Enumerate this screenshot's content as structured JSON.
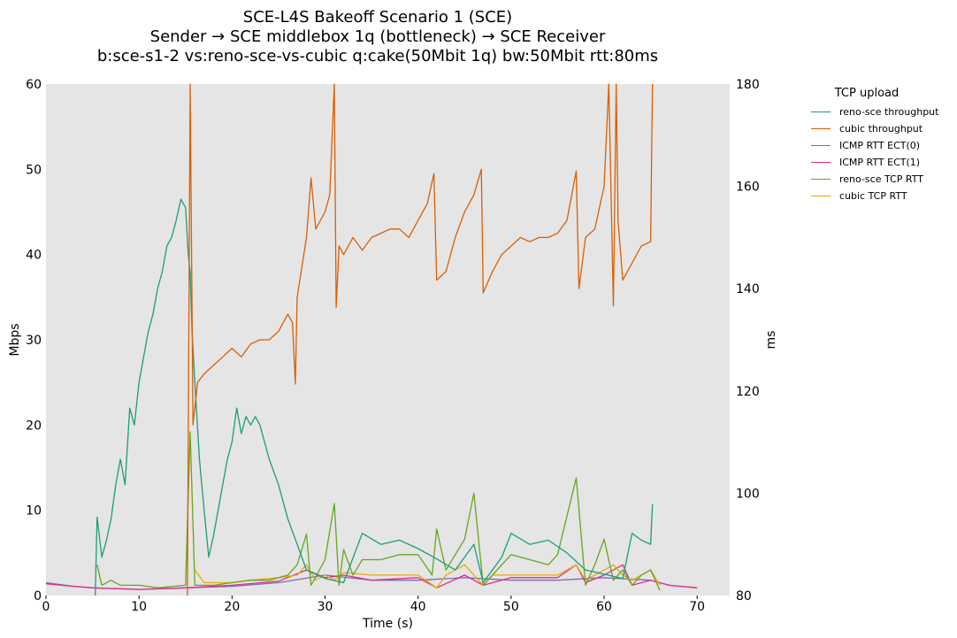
{
  "titles": {
    "line1": "SCE-L4S Bakeoff Scenario 1 (SCE)",
    "line2": "Sender → SCE middlebox 1q (bottleneck) → SCE Receiver",
    "line3": "b:sce-s1-2 vs:reno-sce-vs-cubic q:cake(50Mbit 1q) bw:50Mbit rtt:80ms"
  },
  "chart_data": {
    "type": "line",
    "xlabel": "Time (s)",
    "ylabel_left": "Mbps",
    "ylabel_right": "ms",
    "xlim": [
      0,
      73.5
    ],
    "ylim_left": [
      0,
      60
    ],
    "ylim_right": [
      80,
      180
    ],
    "x_ticks": [
      0,
      10,
      20,
      30,
      40,
      50,
      60,
      70
    ],
    "y_ticks_left": [
      0,
      10,
      20,
      30,
      40,
      50,
      60
    ],
    "y_ticks_right": [
      80,
      100,
      120,
      140,
      160,
      180
    ],
    "grid": false,
    "background": "#e5e5e5",
    "legend": {
      "title": "TCP upload",
      "placement": "outside-right"
    },
    "series": [
      {
        "name": "reno-sce throughput",
        "axis": "left",
        "color": "#1b9e77",
        "points": [
          [
            5.3,
            0
          ],
          [
            5.5,
            9.2
          ],
          [
            6,
            4.5
          ],
          [
            6.5,
            6.5
          ],
          [
            7,
            9
          ],
          [
            7.5,
            13
          ],
          [
            8,
            16
          ],
          [
            8.5,
            13
          ],
          [
            9,
            22
          ],
          [
            9.5,
            20
          ],
          [
            10,
            25
          ],
          [
            10.5,
            28
          ],
          [
            11,
            31
          ],
          [
            11.5,
            33
          ],
          [
            12,
            36
          ],
          [
            12.5,
            38
          ],
          [
            13,
            41
          ],
          [
            13.5,
            42
          ],
          [
            14,
            44
          ],
          [
            14.5,
            46.5
          ],
          [
            15,
            45.5
          ],
          [
            15.3,
            40
          ],
          [
            15.5,
            38
          ],
          [
            15.7,
            31
          ],
          [
            16,
            25
          ],
          [
            16.5,
            16
          ],
          [
            17,
            10
          ],
          [
            17.5,
            4.5
          ],
          [
            18,
            7
          ],
          [
            18.5,
            10
          ],
          [
            19,
            13
          ],
          [
            19.5,
            16
          ],
          [
            20,
            18
          ],
          [
            20.5,
            22
          ],
          [
            21,
            19
          ],
          [
            21.5,
            21
          ],
          [
            22,
            20
          ],
          [
            22.5,
            21
          ],
          [
            23,
            20
          ],
          [
            23.5,
            18
          ],
          [
            24,
            16
          ],
          [
            25,
            13
          ],
          [
            26,
            9
          ],
          [
            27,
            6
          ],
          [
            28,
            3
          ],
          [
            30,
            2
          ],
          [
            32,
            1.5
          ],
          [
            34,
            7.3
          ],
          [
            36,
            6
          ],
          [
            38,
            6.5
          ],
          [
            40,
            5.5
          ],
          [
            42,
            4.3
          ],
          [
            44,
            3
          ],
          [
            46,
            6
          ],
          [
            47,
            1.5
          ],
          [
            49,
            4.5
          ],
          [
            50,
            7.3
          ],
          [
            52,
            6
          ],
          [
            54,
            6.5
          ],
          [
            56,
            5
          ],
          [
            58,
            3
          ],
          [
            60,
            2.5
          ],
          [
            62,
            2
          ],
          [
            63,
            7.3
          ],
          [
            64,
            6.5
          ],
          [
            65,
            6
          ],
          [
            65.2,
            10.7
          ]
        ]
      },
      {
        "name": "cubic throughput",
        "axis": "left",
        "color": "#d95f02",
        "points": [
          [
            15.2,
            0
          ],
          [
            15.5,
            62
          ],
          [
            15.8,
            20
          ],
          [
            16.3,
            25
          ],
          [
            17,
            26
          ],
          [
            18,
            27
          ],
          [
            19,
            28
          ],
          [
            20,
            29
          ],
          [
            21,
            28
          ],
          [
            22,
            29.5
          ],
          [
            23,
            30
          ],
          [
            24,
            30
          ],
          [
            25,
            31
          ],
          [
            26,
            33
          ],
          [
            26.5,
            32
          ],
          [
            26.8,
            24.8
          ],
          [
            27,
            35
          ],
          [
            28,
            42
          ],
          [
            28.5,
            49
          ],
          [
            29,
            43
          ],
          [
            30,
            45
          ],
          [
            30.5,
            47
          ],
          [
            31,
            60
          ],
          [
            31.2,
            33.8
          ],
          [
            31.5,
            41
          ],
          [
            32,
            40
          ],
          [
            33,
            42
          ],
          [
            34,
            40.5
          ],
          [
            35,
            42
          ],
          [
            36,
            42.5
          ],
          [
            37,
            43
          ],
          [
            38,
            43
          ],
          [
            39,
            42
          ],
          [
            40,
            44
          ],
          [
            41,
            46
          ],
          [
            41.7,
            49.5
          ],
          [
            42,
            37
          ],
          [
            43,
            38
          ],
          [
            44,
            42
          ],
          [
            45,
            45
          ],
          [
            46,
            47
          ],
          [
            46.8,
            50
          ],
          [
            47,
            35.5
          ],
          [
            48,
            38
          ],
          [
            49,
            40
          ],
          [
            50,
            41
          ],
          [
            51,
            42
          ],
          [
            52,
            41.5
          ],
          [
            53,
            42
          ],
          [
            54,
            42
          ],
          [
            55,
            42.5
          ],
          [
            56,
            44
          ],
          [
            57,
            49.8
          ],
          [
            57.3,
            36
          ],
          [
            58,
            42
          ],
          [
            59,
            43
          ],
          [
            60,
            48
          ],
          [
            60.5,
            60
          ],
          [
            61,
            34
          ],
          [
            61.3,
            60
          ],
          [
            61.5,
            44
          ],
          [
            62,
            37
          ],
          [
            63,
            39
          ],
          [
            64,
            41
          ],
          [
            65,
            41.5
          ],
          [
            65.2,
            60
          ]
        ]
      },
      {
        "name": "ICMP RTT ECT(0)",
        "axis": "right",
        "color": "#7570b3",
        "points": [
          [
            0,
            82.5
          ],
          [
            3,
            81.8
          ],
          [
            5,
            81.5
          ],
          [
            10,
            81.2
          ],
          [
            15,
            81.5
          ],
          [
            20,
            81.8
          ],
          [
            25,
            82.5
          ],
          [
            30,
            84
          ],
          [
            35,
            83
          ],
          [
            40,
            83
          ],
          [
            45,
            83.5
          ],
          [
            50,
            83
          ],
          [
            55,
            83
          ],
          [
            60,
            83.5
          ],
          [
            65,
            83
          ],
          [
            67,
            82
          ],
          [
            70,
            81.5
          ]
        ]
      },
      {
        "name": "ICMP RTT ECT(1)",
        "axis": "right",
        "color": "#e7298a",
        "points": [
          [
            0,
            82.3
          ],
          [
            3,
            81.8
          ],
          [
            5,
            81.5
          ],
          [
            10,
            81.2
          ],
          [
            15,
            81.5
          ],
          [
            20,
            82
          ],
          [
            25,
            82.8
          ],
          [
            28,
            85
          ],
          [
            30,
            83.5
          ],
          [
            32,
            84
          ],
          [
            35,
            83
          ],
          [
            40,
            83.5
          ],
          [
            42,
            81.5
          ],
          [
            45,
            84
          ],
          [
            47,
            82
          ],
          [
            50,
            83.5
          ],
          [
            55,
            83.5
          ],
          [
            57,
            86
          ],
          [
            58,
            82.5
          ],
          [
            60,
            84
          ],
          [
            62,
            86
          ],
          [
            63,
            82
          ],
          [
            65,
            83
          ],
          [
            67,
            82
          ],
          [
            70,
            81.5
          ]
        ]
      },
      {
        "name": "reno-sce TCP RTT",
        "axis": "right",
        "color": "#66a61e",
        "points": [
          [
            5.5,
            86
          ],
          [
            6,
            82
          ],
          [
            7,
            83
          ],
          [
            8,
            82
          ],
          [
            10,
            82
          ],
          [
            12,
            81.5
          ],
          [
            15,
            82
          ],
          [
            15.5,
            112
          ],
          [
            16,
            82
          ],
          [
            18,
            82
          ],
          [
            20,
            82.5
          ],
          [
            22,
            83
          ],
          [
            24,
            83
          ],
          [
            26,
            84
          ],
          [
            27,
            86
          ],
          [
            28,
            92
          ],
          [
            28.5,
            82
          ],
          [
            30,
            87
          ],
          [
            31,
            98
          ],
          [
            31.5,
            82
          ],
          [
            32,
            89
          ],
          [
            33,
            84
          ],
          [
            34,
            87
          ],
          [
            36,
            87
          ],
          [
            38,
            88
          ],
          [
            40,
            88
          ],
          [
            41.5,
            84
          ],
          [
            42,
            93
          ],
          [
            43,
            85
          ],
          [
            44,
            88
          ],
          [
            45,
            91
          ],
          [
            46,
            100
          ],
          [
            47,
            82
          ],
          [
            49,
            86
          ],
          [
            50,
            88
          ],
          [
            52,
            87
          ],
          [
            54,
            86
          ],
          [
            55,
            88
          ],
          [
            57,
            103
          ],
          [
            58,
            82
          ],
          [
            59,
            86
          ],
          [
            60,
            91
          ],
          [
            61,
            83
          ],
          [
            62,
            85
          ],
          [
            63,
            82
          ],
          [
            64,
            84
          ],
          [
            65,
            85
          ],
          [
            66,
            81
          ]
        ]
      },
      {
        "name": "cubic TCP RTT",
        "axis": "right",
        "color": "#e6ab02",
        "points": [
          [
            16,
            85
          ],
          [
            17,
            82.5
          ],
          [
            20,
            82.5
          ],
          [
            22,
            83
          ],
          [
            25,
            83.5
          ],
          [
            27,
            84
          ],
          [
            28,
            86
          ],
          [
            29,
            83
          ],
          [
            30,
            84
          ],
          [
            31,
            83
          ],
          [
            32,
            84.5
          ],
          [
            35,
            84
          ],
          [
            40,
            84
          ],
          [
            42,
            81.5
          ],
          [
            43,
            84
          ],
          [
            45,
            86
          ],
          [
            47,
            82
          ],
          [
            48,
            84
          ],
          [
            50,
            84
          ],
          [
            55,
            84
          ],
          [
            57,
            86
          ],
          [
            58,
            83
          ],
          [
            60,
            85
          ],
          [
            61,
            86
          ],
          [
            62,
            84
          ],
          [
            63,
            83
          ],
          [
            64,
            84
          ],
          [
            65,
            85
          ],
          [
            66,
            82
          ]
        ]
      }
    ]
  }
}
